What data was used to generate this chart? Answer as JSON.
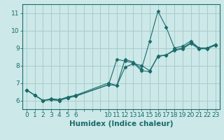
{
  "bg_color": "#cce8e8",
  "grid_color": "#aacccc",
  "line_color": "#1a6b6b",
  "xlabel": "Humidex (Indice chaleur)",
  "ylim": [
    5.5,
    11.5
  ],
  "xlim": [
    -0.5,
    23.5
  ],
  "yticks": [
    6,
    7,
    8,
    9,
    10,
    11
  ],
  "xticks_all": [
    0,
    1,
    2,
    3,
    4,
    5,
    6,
    7,
    8,
    9,
    10,
    11,
    12,
    13,
    14,
    15,
    16,
    17,
    18,
    19,
    20,
    21,
    22,
    23
  ],
  "xtick_labels": [
    "0",
    "1",
    "2",
    "3",
    "4",
    "5",
    "6",
    "",
    "",
    "",
    "10",
    "11",
    "12",
    "13",
    "14",
    "15",
    "16",
    "17",
    "18",
    "19",
    "20",
    "21",
    "22",
    "23"
  ],
  "line1_x": [
    0,
    1,
    2,
    3,
    4,
    5,
    6,
    10,
    11,
    12,
    13,
    14,
    15,
    16,
    17,
    18,
    19,
    20,
    21,
    22,
    23
  ],
  "line1_y": [
    6.6,
    6.3,
    6.0,
    6.1,
    6.05,
    6.2,
    6.3,
    7.0,
    6.85,
    8.35,
    8.2,
    7.8,
    9.4,
    11.1,
    10.2,
    9.0,
    9.1,
    9.4,
    9.0,
    9.0,
    9.2
  ],
  "line2_x": [
    0,
    1,
    2,
    3,
    4,
    5,
    6,
    10,
    11,
    12,
    13,
    14,
    15,
    16,
    17,
    18,
    19,
    20,
    21,
    22,
    23
  ],
  "line2_y": [
    6.6,
    6.3,
    6.0,
    6.05,
    6.0,
    6.15,
    6.25,
    6.9,
    8.35,
    8.25,
    8.15,
    7.7,
    7.65,
    8.55,
    8.6,
    8.9,
    9.0,
    9.3,
    9.0,
    9.0,
    9.2
  ],
  "line3_x": [
    0,
    1,
    2,
    3,
    4,
    5,
    6,
    10,
    11,
    12,
    13,
    14,
    15,
    16,
    17,
    18,
    19,
    20,
    21,
    22,
    23
  ],
  "line3_y": [
    6.6,
    6.3,
    6.0,
    6.05,
    6.0,
    6.15,
    6.25,
    6.9,
    6.85,
    7.9,
    8.1,
    8.0,
    7.7,
    8.5,
    8.6,
    8.85,
    8.95,
    9.25,
    8.95,
    8.95,
    9.15
  ],
  "tick_fontsize": 6.5,
  "xlabel_fontsize": 7.5
}
